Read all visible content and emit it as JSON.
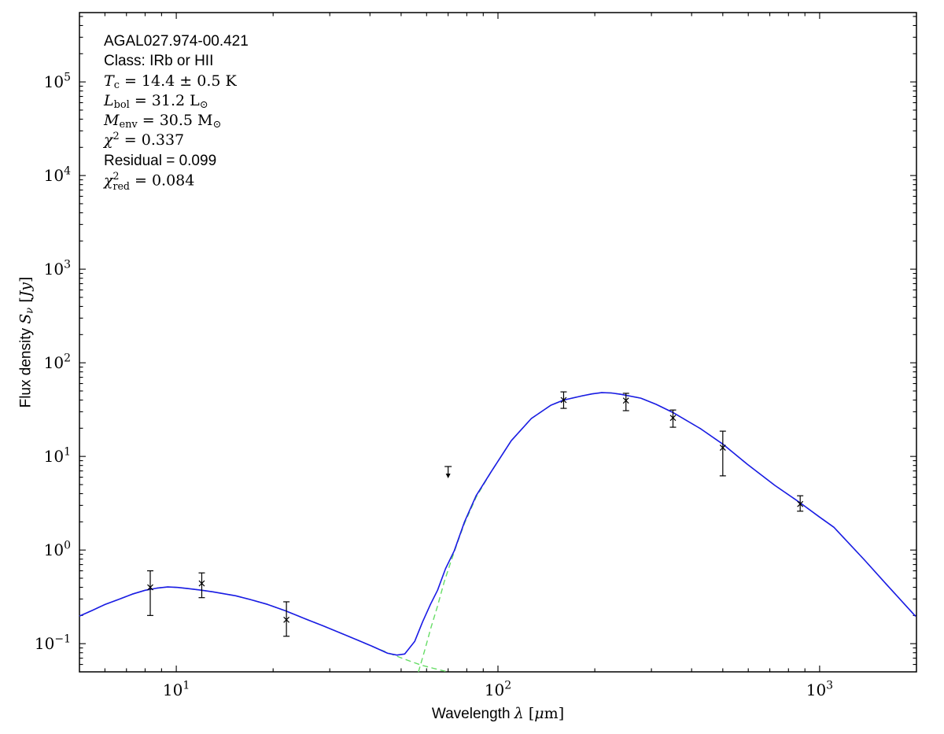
{
  "source_info": {
    "name": "AGAL027.974-00.421",
    "class": "IRb or HII",
    "T_c": "14.4 ± 0.5 K",
    "L_bol": "31.2 L⊙",
    "M_env": "30.5 M⊙",
    "chi2": "0.337",
    "residual": "0.099",
    "chi2_red": "0.084"
  },
  "chart_data": {
    "type": "line",
    "title": "",
    "xlabel": "Wavelength λ [μm]",
    "ylabel": "Flux density Sν [Jy]",
    "xscale": "log",
    "yscale": "log",
    "xlim": [
      5,
      2000
    ],
    "ylim": [
      0.05,
      550000
    ],
    "x_major_ticks": [
      10,
      100,
      1000
    ],
    "y_major_ticks": [
      0.1,
      1,
      10,
      100,
      1000,
      10000,
      100000
    ],
    "grid": false,
    "legend": "none",
    "colors": {
      "total_fit": "#1a1ae6",
      "components": "#66dd66",
      "data": "#000000",
      "frame": "#000000"
    },
    "annotation_lines": [
      {
        "name": "source-name",
        "segments": [
          {
            "t": "AGAL027.974-00.421",
            "f": "s"
          }
        ]
      },
      {
        "name": "source-class",
        "segments": [
          {
            "t": "Class: IRb or HII",
            "f": "s"
          }
        ]
      },
      {
        "name": "dust-temperature",
        "segments": [
          {
            "t": "T",
            "f": "i"
          },
          {
            "t": "c",
            "f": "r",
            "v": "sub"
          },
          {
            "t": " = 14.4 ± 0.5 K",
            "f": "r"
          }
        ]
      },
      {
        "name": "bolometric-luminosity",
        "segments": [
          {
            "t": "L",
            "f": "i"
          },
          {
            "t": "bol",
            "f": "r",
            "v": "sub"
          },
          {
            "t": " = 31.2 L",
            "f": "r"
          },
          {
            "t": "⊙",
            "f": "r",
            "v": "sub"
          }
        ]
      },
      {
        "name": "envelope-mass",
        "segments": [
          {
            "t": "M",
            "f": "i"
          },
          {
            "t": "env",
            "f": "r",
            "v": "sub"
          },
          {
            "t": " = 30.5 M",
            "f": "r"
          },
          {
            "t": "⊙",
            "f": "r",
            "v": "sub"
          }
        ]
      },
      {
        "name": "chi-squared",
        "segments": [
          {
            "t": "χ",
            "f": "i"
          },
          {
            "t": "2",
            "f": "r",
            "v": "sup"
          },
          {
            "t": " = 0.337",
            "f": "r"
          }
        ]
      },
      {
        "name": "residual",
        "segments": [
          {
            "t": "Residual = 0.099",
            "f": "s"
          }
        ]
      },
      {
        "name": "reduced-chi-squared",
        "segments": [
          {
            "t": "χ",
            "f": "i"
          },
          {
            "t": "2",
            "f": "r",
            "v": "stack",
            "sub": "red"
          },
          {
            "t": " = 0.084",
            "f": "r"
          }
        ]
      }
    ],
    "xlabel_segments": [
      {
        "t": "Wavelength ",
        "f": "s"
      },
      {
        "t": "λ",
        "f": "i"
      },
      {
        "t": " [",
        "f": "r"
      },
      {
        "t": "μ",
        "f": "i"
      },
      {
        "t": "m",
        "f": "r"
      },
      {
        "t": "]",
        "f": "r"
      }
    ],
    "ylabel_segments": [
      {
        "t": "Flux density ",
        "f": "s"
      },
      {
        "t": "S",
        "f": "i"
      },
      {
        "t": "ν",
        "f": "i",
        "v": "sub"
      },
      {
        "t": " [",
        "f": "r"
      },
      {
        "t": "Jy",
        "f": "i"
      },
      {
        "t": "]",
        "f": "r"
      }
    ],
    "series": [
      {
        "name": "total-fit",
        "style": "solid",
        "color": "#1a1ae6",
        "points": [
          [
            5.0,
            0.197
          ],
          [
            5.5,
            0.228
          ],
          [
            6.0,
            0.262
          ],
          [
            6.6,
            0.296
          ],
          [
            7.3,
            0.338
          ],
          [
            8.0,
            0.372
          ],
          [
            8.7,
            0.392
          ],
          [
            9.4,
            0.403
          ],
          [
            10.1,
            0.399
          ],
          [
            10.9,
            0.387
          ],
          [
            11.9,
            0.373
          ],
          [
            13.0,
            0.358
          ],
          [
            14.1,
            0.341
          ],
          [
            15.3,
            0.325
          ],
          [
            17.0,
            0.296
          ],
          [
            19.2,
            0.263
          ],
          [
            21.8,
            0.225
          ],
          [
            25.4,
            0.182
          ],
          [
            28.6,
            0.155
          ],
          [
            33.7,
            0.123
          ],
          [
            36.9,
            0.108
          ],
          [
            40.6,
            0.094
          ],
          [
            45.4,
            0.079
          ],
          [
            48.5,
            0.0755
          ],
          [
            51.3,
            0.0775
          ],
          [
            55.1,
            0.106
          ],
          [
            58.3,
            0.171
          ],
          [
            61.7,
            0.263
          ],
          [
            64.9,
            0.372
          ],
          [
            68.7,
            0.63
          ],
          [
            73.1,
            0.98
          ],
          [
            78.7,
            2.0
          ],
          [
            85.5,
            3.8
          ],
          [
            95.1,
            6.8
          ],
          [
            110,
            14.7
          ],
          [
            127,
            25.4
          ],
          [
            146,
            35.2
          ],
          [
            160,
            40.0
          ],
          [
            183,
            44.4
          ],
          [
            196,
            46.5
          ],
          [
            210,
            48.0
          ],
          [
            225,
            47.6
          ],
          [
            241,
            46.1
          ],
          [
            278,
            41.9
          ],
          [
            310,
            36.0
          ],
          [
            349,
            29.6
          ],
          [
            427,
            19.7
          ],
          [
            499,
            13.6
          ],
          [
            596,
            8.25
          ],
          [
            726,
            4.9
          ],
          [
            863,
            3.26
          ],
          [
            1000,
            2.25
          ],
          [
            1107,
            1.75
          ],
          [
            1380,
            0.78
          ],
          [
            1633,
            0.41
          ],
          [
            1988,
            0.196
          ]
        ]
      },
      {
        "name": "hot-component",
        "style": "dashed",
        "color": "#66dd66",
        "points": [
          [
            5.0,
            0.197
          ],
          [
            5.5,
            0.228
          ],
          [
            6.0,
            0.262
          ],
          [
            6.6,
            0.296
          ],
          [
            7.3,
            0.338
          ],
          [
            8.0,
            0.372
          ],
          [
            8.7,
            0.392
          ],
          [
            9.4,
            0.403
          ],
          [
            10.1,
            0.399
          ],
          [
            10.9,
            0.387
          ],
          [
            11.9,
            0.373
          ],
          [
            13.0,
            0.358
          ],
          [
            14.1,
            0.341
          ],
          [
            15.3,
            0.325
          ],
          [
            17.0,
            0.296
          ],
          [
            19.2,
            0.263
          ],
          [
            21.8,
            0.225
          ],
          [
            25.4,
            0.182
          ],
          [
            28.6,
            0.155
          ],
          [
            33.7,
            0.123
          ],
          [
            36.9,
            0.108
          ],
          [
            40.6,
            0.0935
          ],
          [
            43.9,
            0.084
          ],
          [
            47.0,
            0.0765
          ],
          [
            50.0,
            0.0705
          ],
          [
            53.6,
            0.0645
          ],
          [
            57.7,
            0.059
          ],
          [
            63.0,
            0.0545
          ],
          [
            70.0,
            0.0498
          ]
        ]
      },
      {
        "name": "cold-component",
        "style": "dashed",
        "color": "#66dd66",
        "points": [
          [
            56.6,
            0.0498
          ],
          [
            59.2,
            0.085
          ],
          [
            62.0,
            0.151
          ],
          [
            64.9,
            0.252
          ],
          [
            68.0,
            0.452
          ],
          [
            71.2,
            0.733
          ],
          [
            74.5,
            1.15
          ],
          [
            78.7,
            1.93
          ],
          [
            85.5,
            3.66
          ],
          [
            95.1,
            6.8
          ],
          [
            110,
            14.7
          ],
          [
            127,
            25.4
          ],
          [
            146,
            35.2
          ],
          [
            160,
            40.0
          ],
          [
            183,
            44.4
          ],
          [
            196,
            46.5
          ],
          [
            210,
            48.0
          ],
          [
            225,
            47.6
          ],
          [
            241,
            46.1
          ],
          [
            278,
            41.9
          ],
          [
            310,
            36.0
          ],
          [
            349,
            29.6
          ],
          [
            427,
            19.7
          ],
          [
            499,
            13.6
          ],
          [
            596,
            8.25
          ],
          [
            726,
            4.9
          ],
          [
            863,
            3.26
          ],
          [
            1000,
            2.25
          ],
          [
            1107,
            1.75
          ],
          [
            1380,
            0.78
          ],
          [
            1633,
            0.41
          ],
          [
            1988,
            0.196
          ]
        ]
      }
    ],
    "scatter": {
      "name": "photometry-points",
      "marker": "x",
      "color": "#000000",
      "points": [
        {
          "x": 8.3,
          "y": 0.4,
          "err_lo": 0.2,
          "err_hi": 0.6
        },
        {
          "x": 12,
          "y": 0.44,
          "err_lo": 0.31,
          "err_hi": 0.57
        },
        {
          "x": 22,
          "y": 0.18,
          "err_lo": 0.12,
          "err_hi": 0.28
        },
        {
          "x": 160,
          "y": 40.0,
          "err_lo": 32.6,
          "err_hi": 48.9
        },
        {
          "x": 250,
          "y": 39.5,
          "err_lo": 30.8,
          "err_hi": 47.2
        },
        {
          "x": 350,
          "y": 25.8,
          "err_lo": 20.5,
          "err_hi": 31.3
        },
        {
          "x": 500,
          "y": 12.4,
          "err_lo": 6.2,
          "err_hi": 18.6
        },
        {
          "x": 870,
          "y": 3.1,
          "err_lo": 2.6,
          "err_hi": 3.8
        }
      ]
    },
    "upper_limits": [
      {
        "x": 70,
        "y": 7.8
      }
    ]
  }
}
